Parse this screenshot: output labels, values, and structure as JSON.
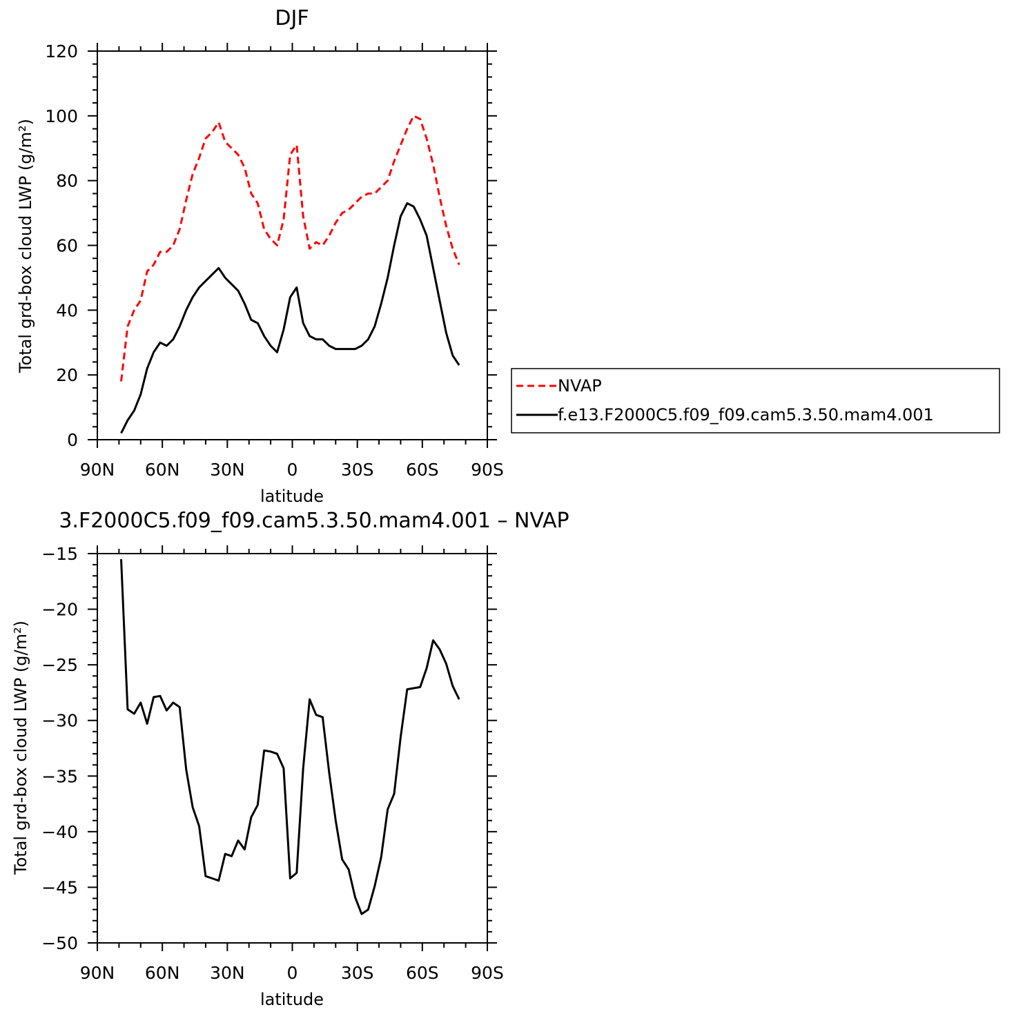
{
  "chart_data": [
    {
      "type": "line",
      "title": "DJF",
      "xlabel": "latitude",
      "ylabel": "Total grd-box cloud LWP (g/m²)",
      "ylim": [
        0,
        120
      ],
      "xlim": [
        -90,
        90
      ],
      "x_tick_values": [
        -90,
        -60,
        -30,
        0,
        30,
        60,
        90
      ],
      "x_tick_labels": [
        "90N",
        "60N",
        "30N",
        "0",
        "30S",
        "60S",
        "90S"
      ],
      "y_tick_values": [
        0,
        20,
        40,
        60,
        80,
        100,
        120
      ],
      "y_tick_labels": [
        "0",
        "20",
        "40",
        "60",
        "80",
        "100",
        "120"
      ],
      "legend_position": "right",
      "series": [
        {
          "name": "NVAP",
          "color": "#ff0000",
          "dash": "dashed",
          "x": [
            -79,
            -76,
            -73,
            -70,
            -67,
            -64,
            -61,
            -58,
            -55,
            -52,
            -49,
            -46,
            -43,
            -40,
            -37,
            -34,
            -31,
            -28,
            -25,
            -22,
            -19,
            -16,
            -13,
            -10,
            -7,
            -4,
            -1,
            2,
            5,
            8,
            11,
            14,
            17,
            20,
            23,
            26,
            29,
            32,
            35,
            38,
            41,
            44,
            47,
            50,
            53,
            56,
            59,
            62,
            65,
            68,
            71,
            74,
            77
          ],
          "y": [
            18,
            35,
            40,
            43,
            52,
            54,
            58,
            58,
            60,
            65,
            74,
            82,
            87,
            93,
            95,
            98,
            92,
            90,
            88,
            84,
            76,
            73,
            65,
            62,
            60,
            68,
            88,
            91,
            69,
            59,
            61,
            60,
            63,
            67,
            70,
            71,
            73,
            75,
            76,
            76,
            78,
            80,
            86,
            91,
            96,
            100,
            99,
            93,
            85,
            75,
            66,
            59,
            54
          ]
        },
        {
          "name": "f.e13.F2000C5.f09_f09.cam5.3.50.mam4.001",
          "color": "#000000",
          "dash": "solid",
          "x": [
            -79,
            -76,
            -73,
            -70,
            -67,
            -64,
            -61,
            -58,
            -55,
            -52,
            -49,
            -46,
            -43,
            -40,
            -37,
            -34,
            -31,
            -28,
            -25,
            -22,
            -19,
            -16,
            -13,
            -10,
            -7,
            -4,
            -1,
            2,
            5,
            8,
            11,
            14,
            17,
            20,
            23,
            26,
            29,
            32,
            35,
            38,
            41,
            44,
            47,
            50,
            53,
            56,
            59,
            62,
            65,
            68,
            71,
            74,
            77
          ],
          "y": [
            2,
            6,
            9,
            14,
            22,
            27,
            30,
            29,
            31,
            35,
            40,
            44,
            47,
            49,
            51,
            53,
            50,
            48,
            46,
            42,
            37,
            36,
            32,
            29,
            27,
            34,
            44,
            47,
            36,
            32,
            31,
            31,
            29,
            28,
            28,
            28,
            28,
            29,
            31,
            35,
            42,
            50,
            60,
            69,
            73,
            72,
            68,
            63,
            53,
            43,
            33,
            26,
            23
          ]
        }
      ]
    },
    {
      "type": "line",
      "title": "3.F2000C5.f09_f09.cam5.3.50.mam4.001  –  NVAP",
      "xlabel": "latitude",
      "ylabel": "Total grd-box cloud LWP (g/m²)",
      "ylim": [
        -50,
        -15
      ],
      "xlim": [
        -90,
        90
      ],
      "x_tick_values": [
        -90,
        -60,
        -30,
        0,
        30,
        60,
        90
      ],
      "x_tick_labels": [
        "90N",
        "60N",
        "30N",
        "0",
        "30S",
        "60S",
        "90S"
      ],
      "y_tick_values": [
        -50,
        -45,
        -40,
        -35,
        -30,
        -25,
        -20,
        -15
      ],
      "y_tick_labels": [
        "−50",
        "−45",
        "−40",
        "−35",
        "−30",
        "−25",
        "−20",
        "−15"
      ],
      "series": [
        {
          "color": "#000000",
          "dash": "solid",
          "x": [
            -79,
            -76,
            -73,
            -70,
            -67,
            -64,
            -61,
            -58,
            -55,
            -52,
            -49,
            -46,
            -43,
            -40,
            -37,
            -34,
            -31,
            -28,
            -25,
            -22,
            -19,
            -16,
            -13,
            -10,
            -7,
            -4,
            -1,
            2,
            5,
            8,
            11,
            14,
            17,
            20,
            23,
            26,
            29,
            32,
            35,
            38,
            41,
            44,
            47,
            50,
            53,
            56,
            59,
            62,
            65,
            68,
            71,
            74,
            77
          ],
          "y": [
            -15.5,
            -29,
            -29.4,
            -28.4,
            -30.3,
            -27.9,
            -27.8,
            -29.1,
            -28.4,
            -28.8,
            -34.4,
            -37.8,
            -39.5,
            -44,
            -44.2,
            -44.4,
            -42,
            -42.2,
            -40.8,
            -41.6,
            -38.7,
            -37.6,
            -32.7,
            -32.8,
            -33,
            -34.3,
            -44.2,
            -43.7,
            -34.3,
            -28.1,
            -29.5,
            -29.7,
            -34.7,
            -39,
            -42.5,
            -43.4,
            -45.9,
            -47.4,
            -47,
            -44.9,
            -42.3,
            -38,
            -36.6,
            -31.5,
            -27.2,
            -27.1,
            -27,
            -25.3,
            -22.8,
            -23.6,
            -24.9,
            -26.9,
            -28.1
          ]
        }
      ]
    }
  ]
}
